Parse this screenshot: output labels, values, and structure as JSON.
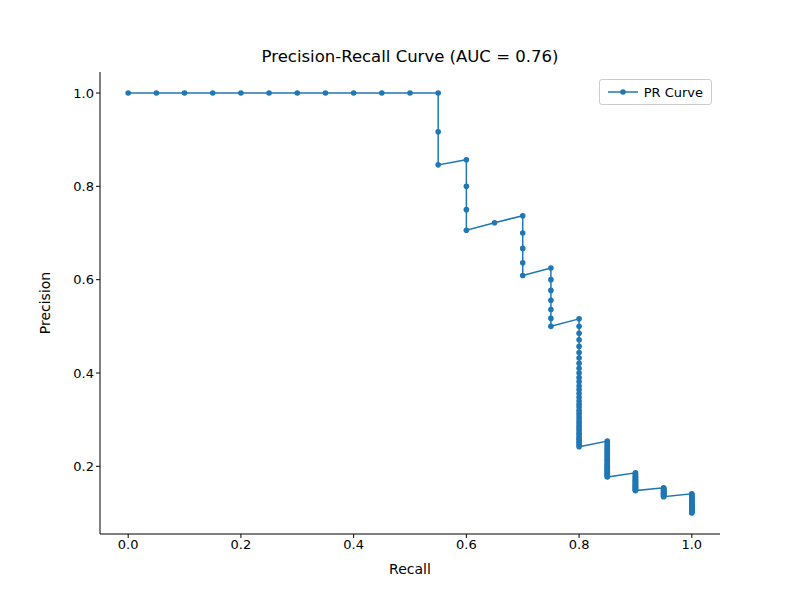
{
  "chart_data": {
    "type": "line",
    "title": "Precision-Recall Curve (AUC = 0.76)",
    "x_label": "Recall",
    "y_label": "Precision",
    "x": [
      0,
      0.05,
      0.1,
      0.15,
      0.2,
      0.25,
      0.3,
      0.35,
      0.4,
      0.45,
      0.5,
      0.55,
      0.55,
      0.55,
      0.6,
      0.6,
      0.6,
      0.6,
      0.65,
      0.7,
      0.7,
      0.7,
      0.7,
      0.7,
      0.75,
      0.75,
      0.75,
      0.75,
      0.75,
      0.75,
      0.75,
      0.8,
      0.8,
      0.8,
      0.8,
      0.8,
      0.8,
      0.8,
      0.8,
      0.8,
      0.8,
      0.8,
      0.8,
      0.8,
      0.8,
      0.8,
      0.8,
      0.8,
      0.8,
      0.8,
      0.8,
      0.8,
      0.8,
      0.8,
      0.8,
      0.8,
      0.8,
      0.8,
      0.8,
      0.8,
      0.8,
      0.8,
      0.8,
      0.8,
      0.8,
      0.8,
      0.8,
      0.85,
      0.85,
      0.85,
      0.85,
      0.85,
      0.85,
      0.85,
      0.85,
      0.85,
      0.85,
      0.85,
      0.85,
      0.85,
      0.85,
      0.85,
      0.85,
      0.85,
      0.85,
      0.85,
      0.85,
      0.85,
      0.85,
      0.85,
      0.85,
      0.85,
      0.85,
      0.85,
      0.85,
      0.85,
      0.85,
      0.9,
      0.9,
      0.9,
      0.9,
      0.9,
      0.9,
      0.9,
      0.9,
      0.9,
      0.9,
      0.9,
      0.9,
      0.9,
      0.9,
      0.9,
      0.9,
      0.9,
      0.9,
      0.9,
      0.9,
      0.9,
      0.9,
      0.9,
      0.9,
      0.9,
      0.9,
      0.95,
      0.95,
      0.95,
      0.95,
      0.95,
      0.95,
      0.95,
      0.95,
      0.95,
      0.95,
      0.95,
      0.95,
      0.95,
      0.95,
      0.95,
      0.95,
      0.95,
      0.95,
      0.95,
      1,
      1,
      1,
      1,
      1,
      1,
      1,
      1,
      1,
      1,
      1,
      1,
      1,
      1,
      1,
      1,
      1,
      1,
      1,
      1,
      1,
      1,
      1,
      1,
      1,
      1,
      1,
      1,
      1,
      1
    ],
    "series": [
      {
        "name": "PR Curve",
        "color": "#1f77b4",
        "marker": "o",
        "values": [
          1,
          1,
          1,
          1,
          1,
          1,
          1,
          1,
          1,
          1,
          1,
          1,
          0.917,
          0.846,
          0.857,
          0.8,
          0.75,
          0.706,
          0.722,
          0.737,
          0.7,
          0.667,
          0.636,
          0.609,
          0.625,
          0.6,
          0.577,
          0.556,
          0.536,
          0.517,
          0.5,
          0.516,
          0.5,
          0.485,
          0.471,
          0.457,
          0.444,
          0.432,
          0.421,
          0.41,
          0.4,
          0.39,
          0.381,
          0.372,
          0.364,
          0.356,
          0.348,
          0.34,
          0.333,
          0.327,
          0.32,
          0.314,
          0.308,
          0.302,
          0.296,
          0.291,
          0.286,
          0.281,
          0.276,
          0.271,
          0.267,
          0.262,
          0.258,
          0.254,
          0.25,
          0.246,
          0.242,
          0.254,
          0.25,
          0.246,
          0.243,
          0.239,
          0.236,
          0.233,
          0.23,
          0.227,
          0.224,
          0.221,
          0.218,
          0.215,
          0.213,
          0.21,
          0.207,
          0.205,
          0.202,
          0.2,
          0.198,
          0.195,
          0.193,
          0.191,
          0.189,
          0.187,
          0.185,
          0.183,
          0.181,
          0.179,
          0.177,
          0.186,
          0.184,
          0.182,
          0.18,
          0.178,
          0.176,
          0.175,
          0.173,
          0.171,
          0.17,
          0.168,
          0.167,
          0.165,
          0.164,
          0.162,
          0.161,
          0.159,
          0.158,
          0.157,
          0.155,
          0.154,
          0.153,
          0.151,
          0.15,
          0.149,
          0.148,
          0.154,
          0.153,
          0.152,
          0.151,
          0.15,
          0.148,
          0.147,
          0.146,
          0.145,
          0.144,
          0.143,
          0.142,
          0.141,
          0.14,
          0.139,
          0.138,
          0.137,
          0.136,
          0.135,
          0.141,
          0.139,
          0.137,
          0.135,
          0.133,
          0.132,
          0.13,
          0.128,
          0.127,
          0.125,
          0.123,
          0.122,
          0.12,
          0.119,
          0.118,
          0.116,
          0.115,
          0.114,
          0.112,
          0.111,
          0.11,
          0.109,
          0.108,
          0.106,
          0.105,
          0.104,
          0.103,
          0.102,
          0.101,
          0.1
        ]
      }
    ],
    "xlim": [
      -0.05,
      1.05
    ],
    "ylim": [
      0.055,
      1.045
    ],
    "xticks": [
      {
        "value": 0,
        "label": "0.0"
      },
      {
        "value": 0.2,
        "label": "0.2"
      },
      {
        "value": 0.4,
        "label": "0.4"
      },
      {
        "value": 0.6,
        "label": "0.6"
      },
      {
        "value": 0.8,
        "label": "0.8"
      },
      {
        "value": 1,
        "label": "1.0"
      }
    ],
    "yticks": [
      {
        "value": 0.2,
        "label": "0.2"
      },
      {
        "value": 0.4,
        "label": "0.4"
      },
      {
        "value": 0.6,
        "label": "0.6"
      },
      {
        "value": 0.8,
        "label": "0.8"
      },
      {
        "value": 1,
        "label": "1.0"
      }
    ],
    "grid": false,
    "legend": "upper right"
  }
}
